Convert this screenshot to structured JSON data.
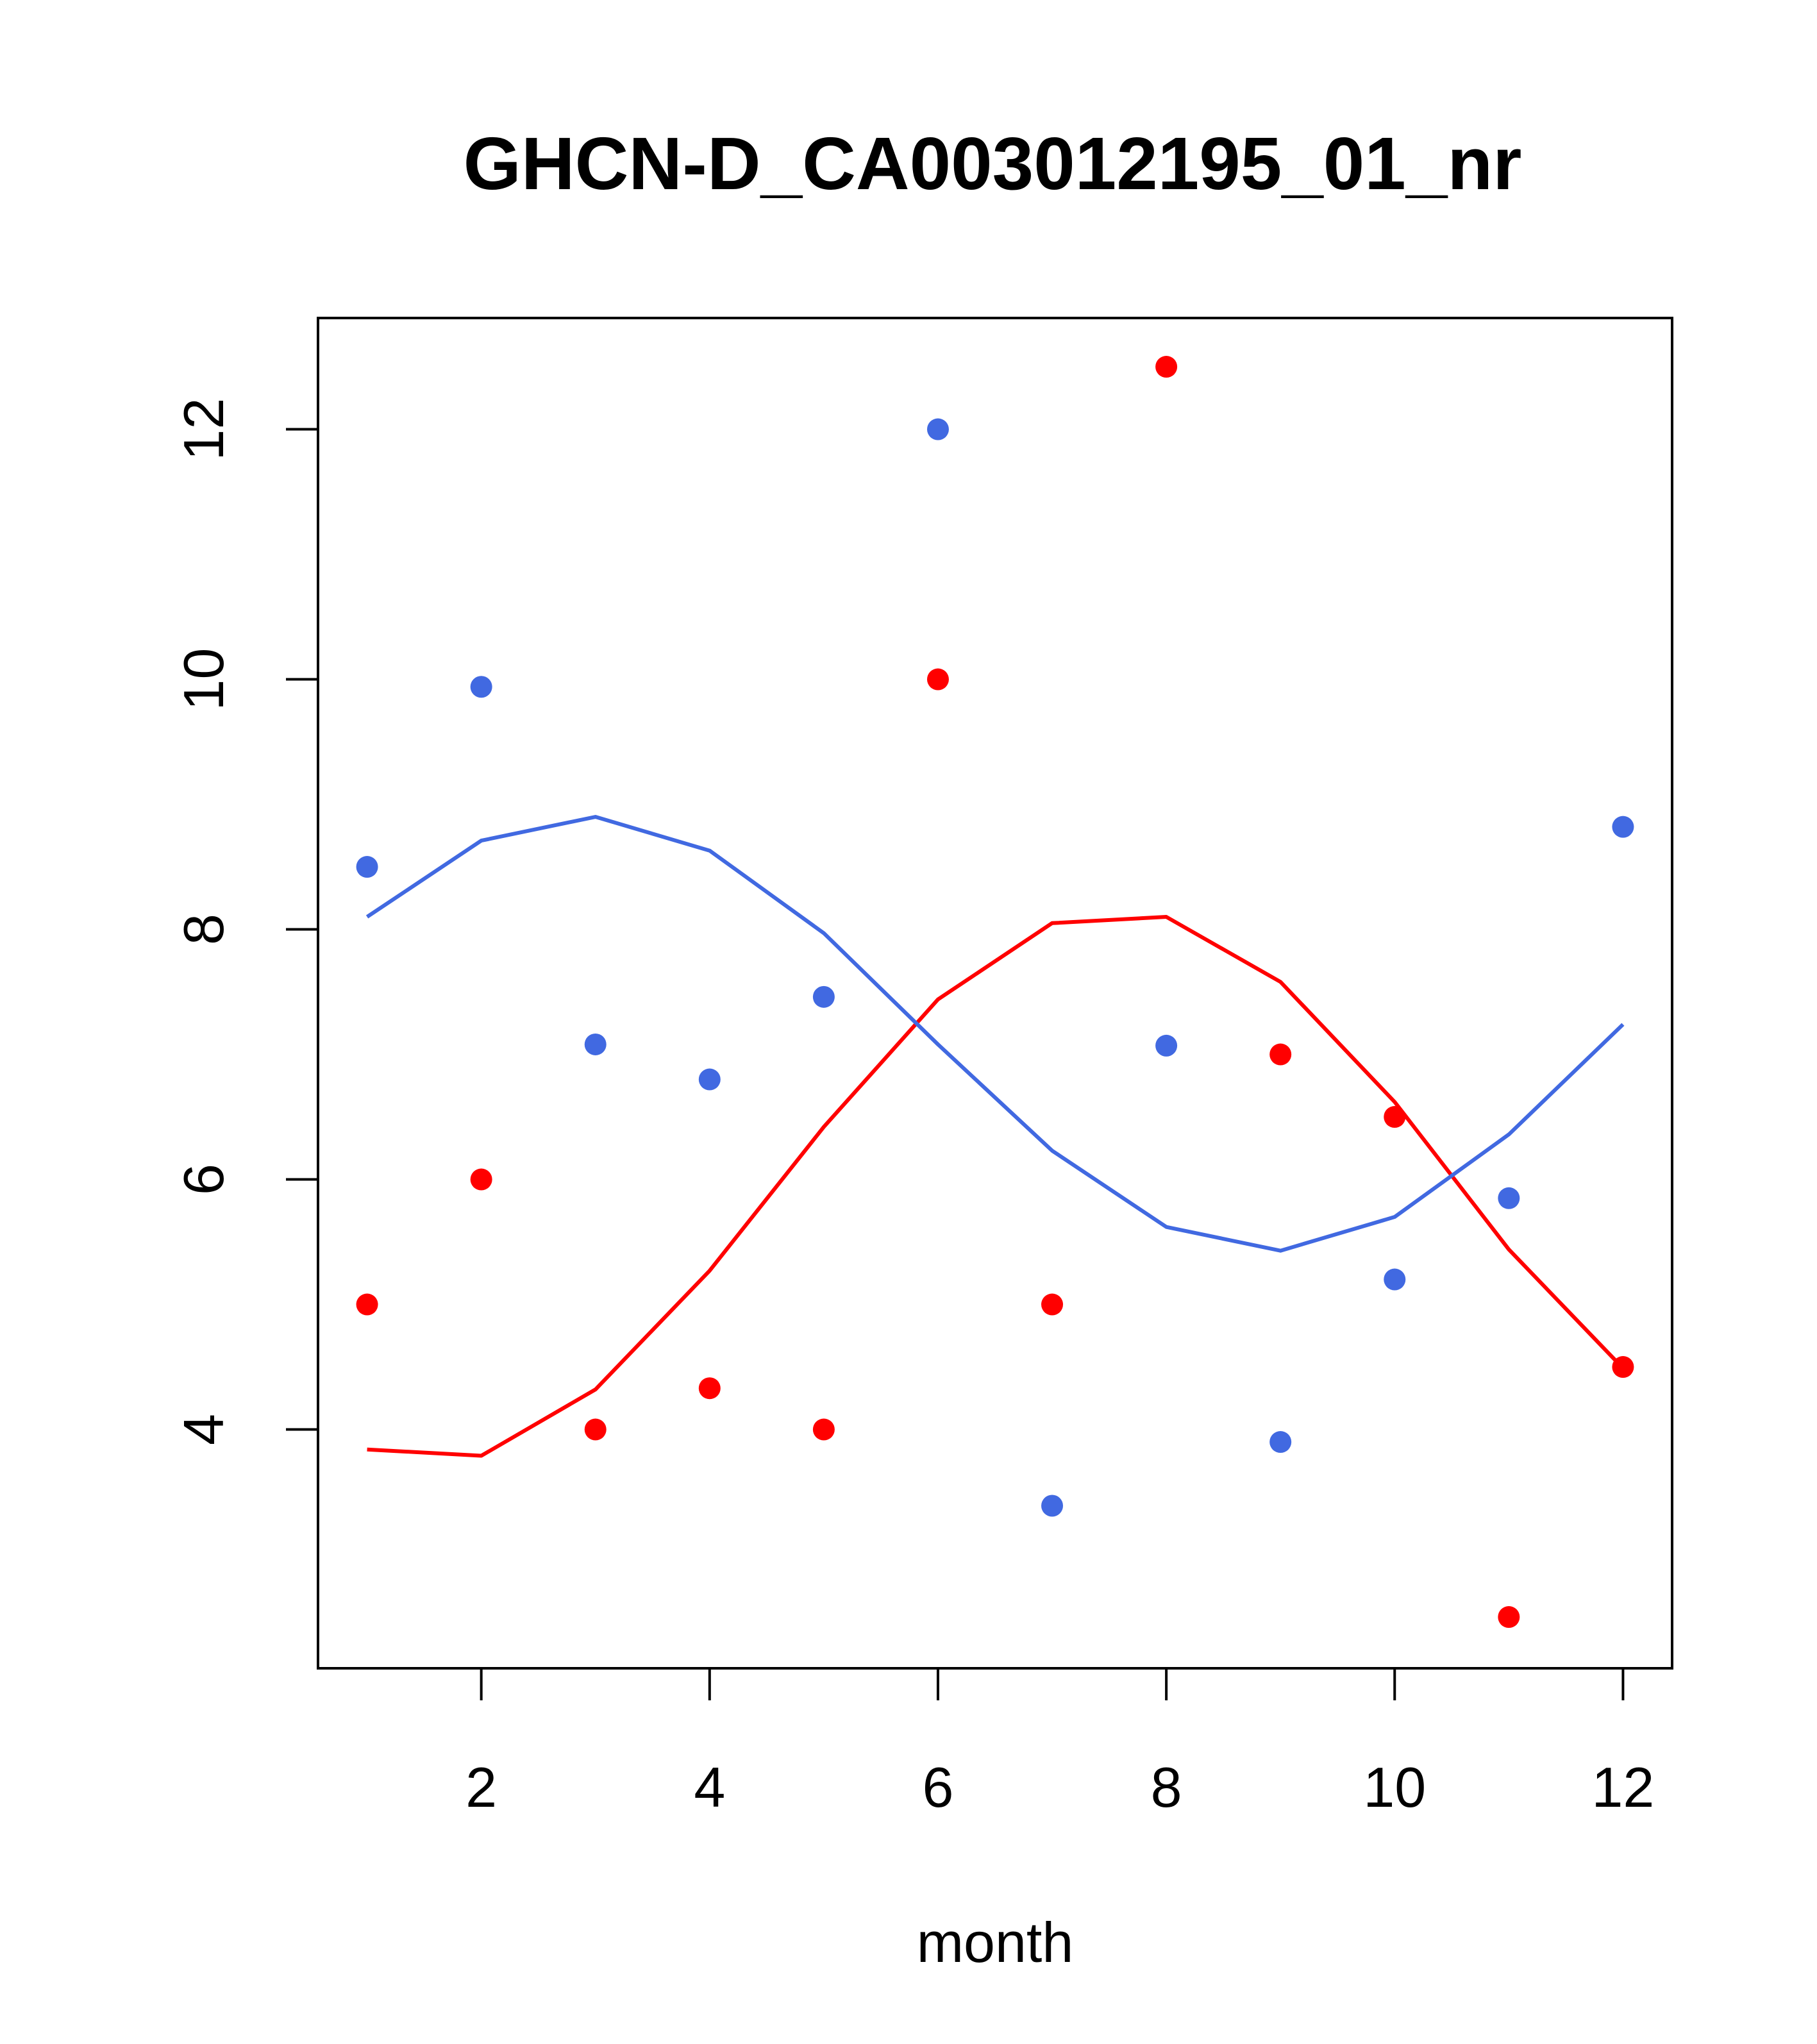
{
  "chart_data": {
    "type": "scatter",
    "title": "GHCN-D_CA003012195_01_nr",
    "xlabel": "month",
    "ylabel": "",
    "xlim": [
      0.57,
      12.43
    ],
    "ylim": [
      2.09,
      12.89
    ],
    "xticks": [
      2,
      4,
      6,
      8,
      10,
      12
    ],
    "yticks": [
      4,
      6,
      8,
      10,
      12
    ],
    "grid": false,
    "legend": "none",
    "series": [
      {
        "color": "#FF0000",
        "points": {
          "x": [
            1,
            2,
            3,
            4,
            5,
            6,
            7,
            8,
            9,
            10,
            11,
            12
          ],
          "y": [
            5.0,
            6.0,
            4.0,
            4.33,
            4.0,
            10.0,
            5.0,
            12.5,
            7.0,
            6.5,
            2.5,
            4.5
          ]
        },
        "line": {
          "x": [
            1,
            2,
            3,
            4,
            5,
            6,
            7,
            8,
            9,
            10,
            11,
            12
          ],
          "y": [
            3.84,
            3.79,
            4.32,
            5.27,
            6.42,
            7.44,
            8.05,
            8.1,
            7.58,
            6.62,
            5.44,
            4.49
          ]
        }
      },
      {
        "color": "#4169E1",
        "points": {
          "x": [
            1,
            2,
            3,
            4,
            5,
            6,
            7,
            8,
            9,
            10,
            11,
            12
          ],
          "y": [
            8.5,
            9.94,
            7.08,
            6.8,
            7.46,
            12.0,
            3.39,
            7.07,
            3.9,
            5.2,
            5.85,
            8.82
          ]
        },
        "line": {
          "x": [
            1,
            2,
            3,
            4,
            5,
            6,
            7,
            8,
            9,
            10,
            11,
            12
          ],
          "y": [
            8.1,
            8.71,
            8.9,
            8.63,
            7.97,
            7.08,
            6.23,
            5.62,
            5.43,
            5.7,
            6.36,
            7.24
          ]
        }
      }
    ]
  }
}
